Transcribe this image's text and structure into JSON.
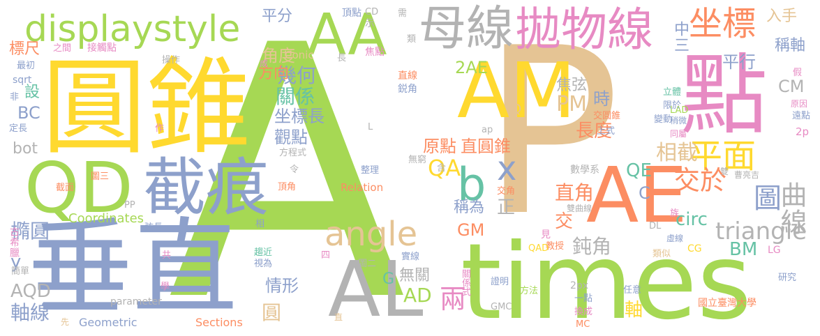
{
  "words": [
    {
      "text": "A",
      "color": "#a6d854"
    },
    {
      "text": "P",
      "color": "#e5c494"
    },
    {
      "text": "圓錐",
      "color": "#ffd92f"
    },
    {
      "text": "點",
      "color": "#e78ac3"
    },
    {
      "text": "垂直",
      "color": "#8da0cb"
    },
    {
      "text": "times",
      "color": "#a6d854"
    },
    {
      "text": "AE",
      "color": "#fc8d62"
    },
    {
      "text": "AM",
      "color": "#ffd92f"
    },
    {
      "text": "AL",
      "color": "#b3b3b3"
    },
    {
      "text": "截痕",
      "color": "#8da0cb"
    },
    {
      "text": "QD",
      "color": "#a6d854"
    },
    {
      "text": "AA",
      "color": "#a6d854"
    },
    {
      "text": "母線",
      "color": "#b3b3b3"
    },
    {
      "text": "拋物線",
      "color": "#e78ac3"
    },
    {
      "text": "displaystyle",
      "color": "#a6d854"
    },
    {
      "text": "坐標",
      "color": "#fc8d62"
    },
    {
      "text": "平面",
      "color": "#ffd92f"
    },
    {
      "text": "angle",
      "color": "#e5c494"
    },
    {
      "text": "b",
      "color": "#66c2a5"
    },
    {
      "text": "x",
      "color": "#8da0cb"
    },
    {
      "text": "圖",
      "color": "#8da0cb"
    },
    {
      "text": "曲線",
      "color": "#b3b3b3"
    },
    {
      "text": "triangle",
      "color": "#b3b3b3"
    },
    {
      "text": "交於",
      "color": "#fc8d62"
    },
    {
      "text": "兩",
      "color": "#e78ac3"
    },
    {
      "text": "PM",
      "color": "#e5c494"
    },
    {
      "text": "時",
      "color": "#8da0cb"
    },
    {
      "text": "長度",
      "color": "#fc8d62"
    },
    {
      "text": "相截",
      "color": "#e5c494"
    },
    {
      "text": "原點",
      "color": "#fc8d62"
    },
    {
      "text": "直圓錐",
      "color": "#fc8d62"
    },
    {
      "text": "焦弦",
      "color": "#b3b3b3"
    },
    {
      "text": "坐標長",
      "color": "#8da0cb"
    },
    {
      "text": "觀點",
      "color": "#8da0cb"
    },
    {
      "text": "關係",
      "color": "#66c2a5"
    },
    {
      "text": "幾何",
      "color": "#8da0cb"
    },
    {
      "text": "角度",
      "color": "#e5c494"
    },
    {
      "text": "平分",
      "color": "#8da0cb"
    },
    {
      "text": "方向",
      "color": "#fc8d62"
    },
    {
      "text": "2AE",
      "color": "#a6d854"
    },
    {
      "text": "橢圓",
      "color": "#8da0cb"
    },
    {
      "text": "情形",
      "color": "#8da0cb"
    },
    {
      "text": "圓",
      "color": "#e5c494"
    },
    {
      "text": "軸線",
      "color": "#8da0cb"
    },
    {
      "text": "AQD",
      "color": "#b3b3b3"
    },
    {
      "text": "y",
      "color": "#8da0cb"
    },
    {
      "text": "QA",
      "color": "#ffd92f"
    },
    {
      "text": "AD",
      "color": "#a6d854"
    },
    {
      "text": "G",
      "color": "#66c2a5"
    },
    {
      "text": "正",
      "color": "#b3b3b3"
    },
    {
      "text": "直角",
      "color": "#fc8d62"
    },
    {
      "text": "稱為",
      "color": "#8da0cb"
    },
    {
      "text": "GM",
      "color": "#fc8d62"
    },
    {
      "text": "交",
      "color": "#fc8d62"
    },
    {
      "text": "鈍角",
      "color": "#b3b3b3"
    },
    {
      "text": "QE",
      "color": "#66c2a5"
    },
    {
      "text": "C",
      "color": "#8da0cb"
    },
    {
      "text": "circ",
      "color": "#66c2a5"
    },
    {
      "text": "BM",
      "color": "#66c2a5"
    },
    {
      "text": "CM",
      "color": "#b3b3b3"
    },
    {
      "text": "平行",
      "color": "#8da0cb"
    },
    {
      "text": "稱軸",
      "color": "#8da0cb"
    },
    {
      "text": "入手",
      "color": "#e5c494"
    },
    {
      "text": "中三",
      "color": "#8da0cb"
    },
    {
      "text": "設",
      "color": "#66c2a5"
    },
    {
      "text": "BC",
      "color": "#8da0cb"
    },
    {
      "text": "bot",
      "color": "#b3b3b3"
    },
    {
      "text": "標尺",
      "color": "#fc8d62"
    },
    {
      "text": "軸",
      "color": "#ffd92f"
    },
    {
      "text": "無關",
      "color": "#b3b3b3"
    },
    {
      "text": "Coordinates",
      "color": "#a6d854"
    },
    {
      "text": "Conic",
      "color": "#e5c494"
    },
    {
      "text": "Relation",
      "color": "#fc8d62"
    },
    {
      "text": "Sections",
      "color": "#fc8d62"
    },
    {
      "text": "Geometric",
      "color": "#8da0cb"
    },
    {
      "text": "parameter",
      "color": "#b3b3b3"
    },
    {
      "text": "國立臺灣大學",
      "color": "#fc8d62"
    },
    {
      "text": "古希臘",
      "color": "#e78ac3"
    },
    {
      "text": "接觸點",
      "color": "#e78ac3"
    },
    {
      "text": "焦點",
      "color": "#e78ac3"
    },
    {
      "text": "頂點",
      "color": "#8da0cb"
    },
    {
      "text": "CD",
      "color": "#b3b3b3"
    },
    {
      "text": "示",
      "color": "#b3b3b3"
    },
    {
      "text": "直線",
      "color": "#fc8d62"
    },
    {
      "text": "鋭角",
      "color": "#8da0cb"
    },
    {
      "text": "交圓錐",
      "color": "#fc8d62"
    },
    {
      "text": "上式",
      "color": "#8da0cb"
    },
    {
      "text": "數學系",
      "color": "#b3b3b3"
    },
    {
      "text": "曹亮吉",
      "color": "#b3b3b3"
    },
    {
      "text": "雙曲線",
      "color": "#b3b3b3"
    },
    {
      "text": "交角",
      "color": "#fc8d62"
    },
    {
      "text": "見",
      "color": "#e78ac3"
    },
    {
      "text": "教授",
      "color": "#fc8d62"
    },
    {
      "text": "類似",
      "color": "#e5c494"
    },
    {
      "text": "QAD",
      "color": "#ffd92f"
    },
    {
      "text": "CG",
      "color": "#ffd92f"
    },
    {
      "text": "LG",
      "color": "#e78ac3"
    },
    {
      "text": "DL",
      "color": "#b3b3b3"
    },
    {
      "text": "LAD",
      "color": "#a6d854"
    },
    {
      "text": "2p",
      "color": "#e78ac3"
    },
    {
      "text": "2px",
      "color": "#b3b3b3"
    },
    {
      "text": "研究",
      "color": "#8da0cb"
    },
    {
      "text": "任意",
      "color": "#8da0cb"
    },
    {
      "text": "一點",
      "color": "#8da0cb"
    },
    {
      "text": "換成",
      "color": "#e78ac3"
    },
    {
      "text": "MC",
      "color": "#fc8d62"
    },
    {
      "text": "方法",
      "color": "#a6d854"
    },
    {
      "text": "GMC",
      "color": "#b3b3b3"
    },
    {
      "text": "證明",
      "color": "#8da0cb"
    },
    {
      "text": "關係式",
      "color": "#e78ac3"
    },
    {
      "text": "實線",
      "color": "#8da0cb"
    },
    {
      "text": "圖二",
      "color": "#b3b3b3"
    },
    {
      "text": "圖三",
      "color": "#fc8d62"
    },
    {
      "text": "截面",
      "color": "#fc8d62"
    },
    {
      "text": "頂角",
      "color": "#fc8d62"
    },
    {
      "text": "方程式",
      "color": "#b3b3b3"
    },
    {
      "text": "整理",
      "color": "#8da0cb"
    },
    {
      "text": "無窮",
      "color": "#b3b3b3"
    },
    {
      "text": "含",
      "color": "#b3b3b3"
    },
    {
      "text": "令",
      "color": "#b3b3b3"
    },
    {
      "text": "作",
      "color": "#e78ac3"
    },
    {
      "text": "弦長",
      "color": "#8da0cb"
    },
    {
      "text": "相",
      "color": "#8da0cb"
    },
    {
      "text": "趨近",
      "color": "#66c2a5"
    },
    {
      "text": "視為",
      "color": "#8da0cb"
    },
    {
      "text": "四",
      "color": "#e78ac3"
    },
    {
      "text": "共",
      "color": "#e78ac3"
    },
    {
      "text": "簡單",
      "color": "#b3b3b3"
    },
    {
      "text": "學",
      "color": "#e78ac3"
    },
    {
      "text": "先",
      "color": "#e5c494"
    },
    {
      "text": "直",
      "color": "#e5c494"
    },
    {
      "text": "之間",
      "color": "#e78ac3"
    },
    {
      "text": "最初",
      "color": "#8da0cb"
    },
    {
      "text": "sqrt",
      "color": "#8da0cb"
    },
    {
      "text": "非",
      "color": "#8da0cb"
    },
    {
      "text": "定長",
      "color": "#8da0cb"
    },
    {
      "text": "操作",
      "color": "#b3b3b3"
    },
    {
      "text": "成",
      "color": "#e78ac3"
    },
    {
      "text": "長",
      "color": "#b3b3b3"
    },
    {
      "text": "需",
      "color": "#b3b3b3"
    },
    {
      "text": "類",
      "color": "#b3b3b3"
    },
    {
      "text": "假",
      "color": "#e78ac3"
    },
    {
      "text": "立體",
      "color": "#66c2a5"
    },
    {
      "text": "限於",
      "color": "#8da0cb"
    },
    {
      "text": "原因",
      "color": "#e78ac3"
    },
    {
      "text": "遠點",
      "color": "#8da0cb"
    },
    {
      "text": "變動",
      "color": "#8da0cb"
    },
    {
      "text": "稍微",
      "color": "#8da0cb"
    },
    {
      "text": "同屬",
      "color": "#e78ac3"
    },
    {
      "text": "雙",
      "color": "#b3b3b3"
    },
    {
      "text": "族",
      "color": "#e78ac3"
    },
    {
      "text": "虛線",
      "color": "#8da0cb"
    },
    {
      "text": "Q",
      "color": "#e5c494"
    },
    {
      "text": "L",
      "color": "#b3b3b3"
    },
    {
      "text": "ap",
      "color": "#b3b3b3"
    },
    {
      "text": "PP",
      "color": "#b3b3b3"
    }
  ]
}
